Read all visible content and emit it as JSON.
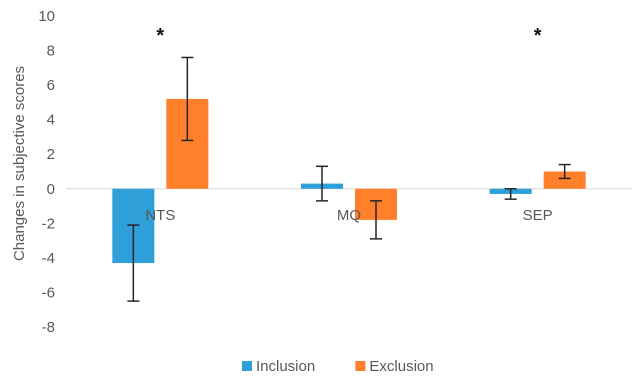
{
  "chart_data": {
    "type": "bar",
    "categories": [
      "NTS",
      "MQ",
      "SEP"
    ],
    "series": [
      {
        "name": "Inclusion",
        "color": "#2e9fd8",
        "values": [
          -4.3,
          0.3,
          -0.3
        ],
        "error": [
          2.2,
          1.0,
          0.3
        ]
      },
      {
        "name": "Exclusion",
        "color": "#ff7f2a",
        "values": [
          5.2,
          -1.8,
          1.0
        ],
        "error": [
          2.4,
          1.1,
          0.4
        ]
      }
    ],
    "annotations": [
      {
        "category": "NTS",
        "text": "*"
      },
      {
        "category": "SEP",
        "text": "*"
      }
    ],
    "ylabel": "Changes in subjective scores",
    "xlabel": "",
    "ylim": [
      -8,
      10
    ],
    "yticks": [
      10,
      8,
      6,
      4,
      2,
      0,
      -2,
      -4,
      -6,
      -8
    ],
    "grid": false,
    "legend_position": "bottom"
  }
}
